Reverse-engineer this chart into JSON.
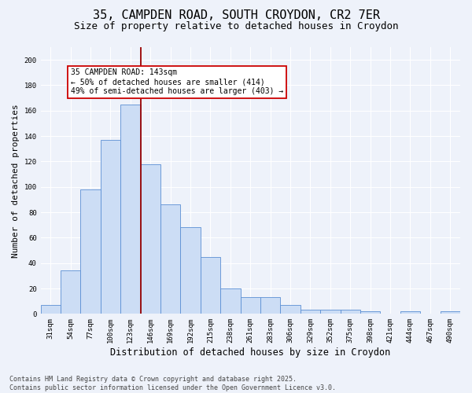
{
  "title1": "35, CAMPDEN ROAD, SOUTH CROYDON, CR2 7ER",
  "title2": "Size of property relative to detached houses in Croydon",
  "xlabel": "Distribution of detached houses by size in Croydon",
  "ylabel": "Number of detached properties",
  "categories": [
    "31sqm",
    "54sqm",
    "77sqm",
    "100sqm",
    "123sqm",
    "146sqm",
    "169sqm",
    "192sqm",
    "215sqm",
    "238sqm",
    "261sqm",
    "283sqm",
    "306sqm",
    "329sqm",
    "352sqm",
    "375sqm",
    "398sqm",
    "421sqm",
    "444sqm",
    "467sqm",
    "490sqm"
  ],
  "values": [
    7,
    34,
    98,
    137,
    165,
    118,
    86,
    68,
    45,
    20,
    13,
    13,
    7,
    3,
    3,
    3,
    2,
    0,
    2,
    0,
    2
  ],
  "bar_color": "#ccddf5",
  "bar_edge_color": "#5b8fd4",
  "vline_index": 4.5,
  "vline_color": "#990000",
  "annotation_title": "35 CAMPDEN ROAD: 143sqm",
  "annotation_line1": "← 50% of detached houses are smaller (414)",
  "annotation_line2": "49% of semi-detached houses are larger (403) →",
  "annotation_box_color": "#ffffff",
  "annotation_box_edge": "#cc0000",
  "ylim": [
    0,
    210
  ],
  "yticks": [
    0,
    20,
    40,
    60,
    80,
    100,
    120,
    140,
    160,
    180,
    200
  ],
  "bg_color": "#eef2fa",
  "footer1": "Contains HM Land Registry data © Crown copyright and database right 2025.",
  "footer2": "Contains public sector information licensed under the Open Government Licence v3.0.",
  "title_fontsize": 11,
  "subtitle_fontsize": 9,
  "tick_fontsize": 6.5,
  "ylabel_fontsize": 8,
  "xlabel_fontsize": 8.5,
  "footer_fontsize": 6,
  "annot_fontsize": 7
}
